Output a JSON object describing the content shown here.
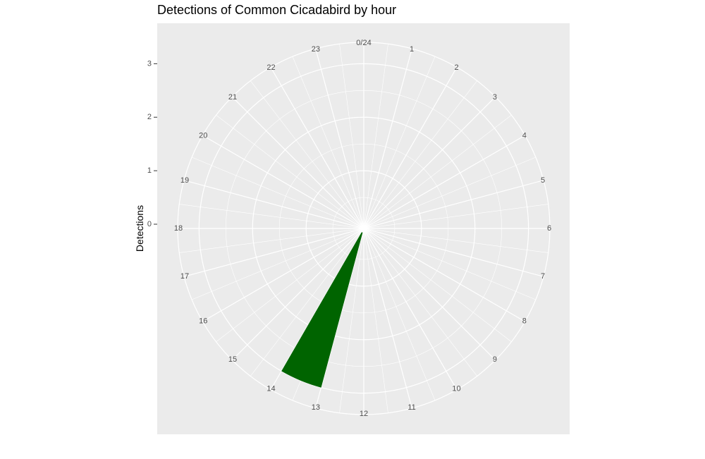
{
  "chart_data": {
    "type": "bar",
    "coord": "polar",
    "title": "Detections of Common Cicadabird by hour",
    "xlabel": "",
    "ylabel": "Detections",
    "x_tick_labels": [
      "0/24",
      "1",
      "2",
      "3",
      "4",
      "5",
      "6",
      "7",
      "8",
      "9",
      "10",
      "11",
      "12",
      "13",
      "14",
      "15",
      "16",
      "17",
      "18",
      "19",
      "20",
      "21",
      "22",
      "23"
    ],
    "y_tick_labels": [
      "0",
      "1",
      "2",
      "3"
    ],
    "y_ticks": [
      0,
      1,
      2,
      3
    ],
    "ylim": [
      0,
      3.4
    ],
    "categories": [
      "0",
      "1",
      "2",
      "3",
      "4",
      "5",
      "6",
      "7",
      "8",
      "9",
      "10",
      "11",
      "12",
      "13",
      "14",
      "15",
      "16",
      "17",
      "18",
      "19",
      "20",
      "21",
      "22",
      "23"
    ],
    "values": [
      0,
      0,
      0,
      0,
      0,
      0,
      0,
      0,
      0,
      0,
      0,
      0,
      0,
      3,
      0,
      0,
      0,
      0,
      0,
      0,
      0,
      0,
      0,
      0
    ],
    "bar_color": "#006400",
    "panel_background": "#ebebeb",
    "grid_color": "#ffffff",
    "grid": true
  }
}
